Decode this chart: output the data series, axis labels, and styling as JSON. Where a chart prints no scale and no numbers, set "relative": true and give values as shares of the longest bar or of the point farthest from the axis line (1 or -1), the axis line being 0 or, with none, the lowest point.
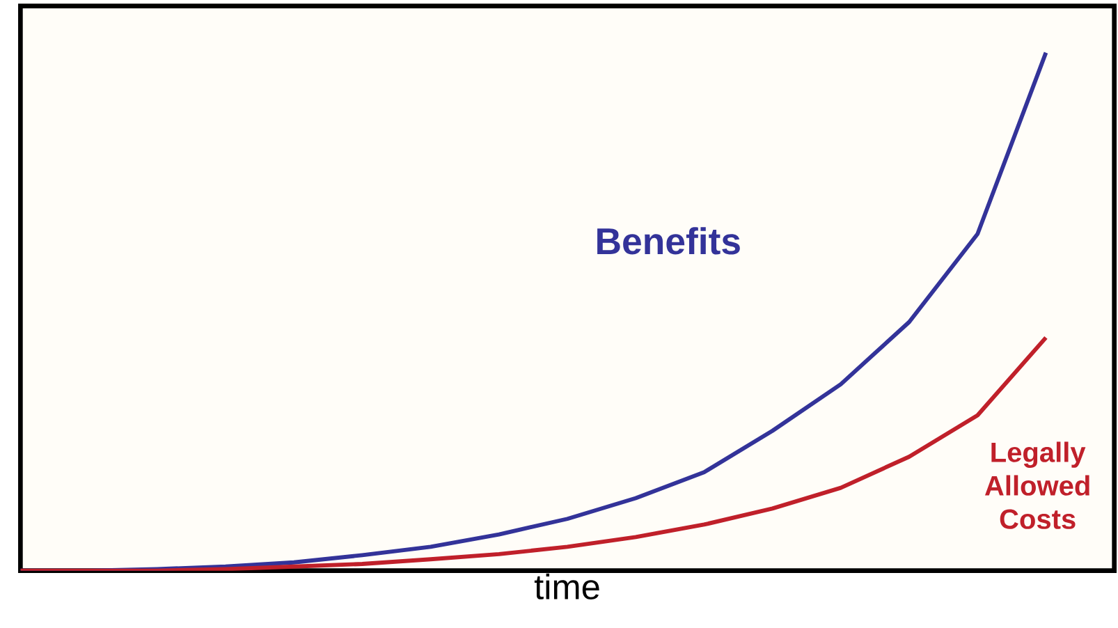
{
  "chart_data": {
    "type": "line",
    "relative": true,
    "xlabel": "time",
    "categories": [
      null,
      null,
      null,
      null,
      null,
      null,
      null,
      null,
      null,
      null,
      null,
      null,
      null,
      null,
      null,
      null
    ],
    "series": [
      {
        "name": "Benefits",
        "color": "#333399",
        "values": [
          0,
          0,
          0.003,
          0.008,
          0.016,
          0.03,
          0.046,
          0.07,
          0.1,
          0.14,
          0.19,
          0.27,
          0.36,
          0.48,
          0.65,
          1
        ]
      },
      {
        "name": "Legally Allowed Costs",
        "color": "#c0202a",
        "values": [
          0,
          0,
          0,
          0.003,
          0.008,
          0.013,
          0.022,
          0.032,
          0.046,
          0.065,
          0.089,
          0.12,
          0.16,
          0.22,
          0.3,
          0.45
        ]
      }
    ],
    "marker": "none",
    "line_style": "solid"
  }
}
